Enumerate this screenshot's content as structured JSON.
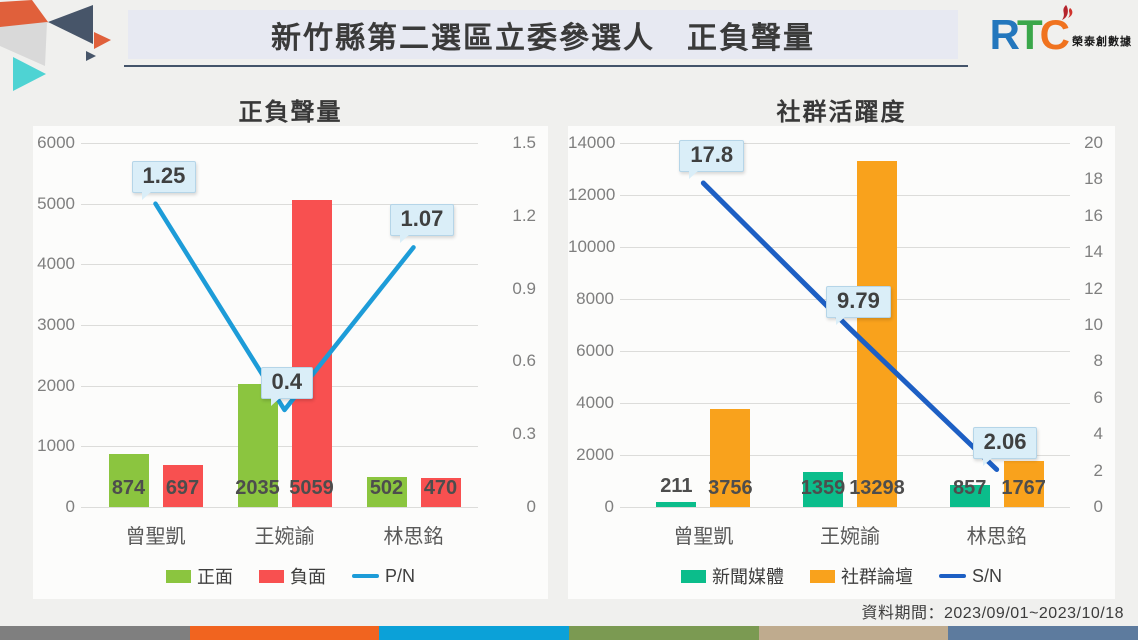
{
  "header": {
    "title": "新竹縣第二選區立委參選人　正負聲量",
    "brand": {
      "letters": [
        "R",
        "T",
        "C"
      ],
      "name": "榮泰創數據"
    }
  },
  "footer": {
    "data_period": "資料期間：2023/09/01~2023/10/18"
  },
  "colors": {
    "titlebar_bg": "#e7e9f2",
    "underline": "#44546a",
    "brand_r": "#2377bd",
    "brand_t": "#3aa74a",
    "brand_c": "#f0731f",
    "brand_flame": "#b5232c",
    "callout_bg": "#daeef8",
    "footer_strip": [
      "#7f7f7f",
      "#f1641f",
      "#0ba1d8",
      "#7b9a52",
      "#bfab8e",
      "#5d7b9e"
    ]
  },
  "chart_data": [
    {
      "type": "bar+line",
      "title": "正負聲量",
      "categories": [
        "曾聖凱",
        "王婉諭",
        "林思銘"
      ],
      "series": [
        {
          "key": "positive",
          "name": "正面",
          "type": "bar",
          "color": "#8bc53f",
          "values": [
            874,
            2035,
            502
          ],
          "labels": [
            "874",
            "2035",
            "502"
          ]
        },
        {
          "key": "negative",
          "name": "負面",
          "type": "bar",
          "color": "#f85050",
          "values": [
            697,
            5059,
            470
          ],
          "labels": [
            "697",
            "5059",
            "470"
          ]
        },
        {
          "key": "pn-ratio",
          "name": "P/N",
          "type": "line",
          "axis": "right",
          "color": "#1d9cd8",
          "values": [
            1.25,
            0.4,
            1.07
          ],
          "labels": [
            "1.25",
            "0.4",
            "1.07"
          ]
        }
      ],
      "left_axis": {
        "min": 0,
        "max": 6000,
        "ticks": [
          "6000",
          "5000",
          "4000",
          "3000",
          "2000",
          "1000",
          "0"
        ]
      },
      "right_axis": {
        "min": 0,
        "max": 1.5,
        "ticks": [
          "1.5",
          "1.2",
          "0.9",
          "0.6",
          "0.3",
          "0"
        ]
      },
      "grid": true,
      "legend_position": "bottom"
    },
    {
      "type": "bar+line",
      "title": "社群活躍度",
      "categories": [
        "曾聖凱",
        "王婉諭",
        "林思銘"
      ],
      "series": [
        {
          "key": "news-media",
          "name": "新聞媒體",
          "type": "bar",
          "color": "#0bbd8b",
          "values": [
            211,
            1359,
            857
          ],
          "labels": [
            "211",
            "1359",
            "857"
          ]
        },
        {
          "key": "social-forum",
          "name": "社群論壇",
          "type": "bar",
          "color": "#f9a21c",
          "values": [
            3756,
            13298,
            1767
          ],
          "labels": [
            "3756",
            "13298",
            "1767"
          ]
        },
        {
          "key": "sn-ratio",
          "name": "S/N",
          "type": "line",
          "axis": "right",
          "color": "#1d5fc4",
          "values": [
            17.8,
            9.79,
            2.06
          ],
          "labels": [
            "17.8",
            "9.79",
            "2.06"
          ]
        }
      ],
      "left_axis": {
        "min": 0,
        "max": 14000,
        "ticks": [
          "14000",
          "12000",
          "10000",
          "8000",
          "6000",
          "4000",
          "2000",
          "0"
        ]
      },
      "right_axis": {
        "min": 0,
        "max": 20,
        "ticks": [
          "20",
          "18",
          "16",
          "14",
          "12",
          "10",
          "8",
          "6",
          "4",
          "2",
          "0"
        ]
      },
      "grid": true,
      "legend_position": "bottom"
    }
  ]
}
